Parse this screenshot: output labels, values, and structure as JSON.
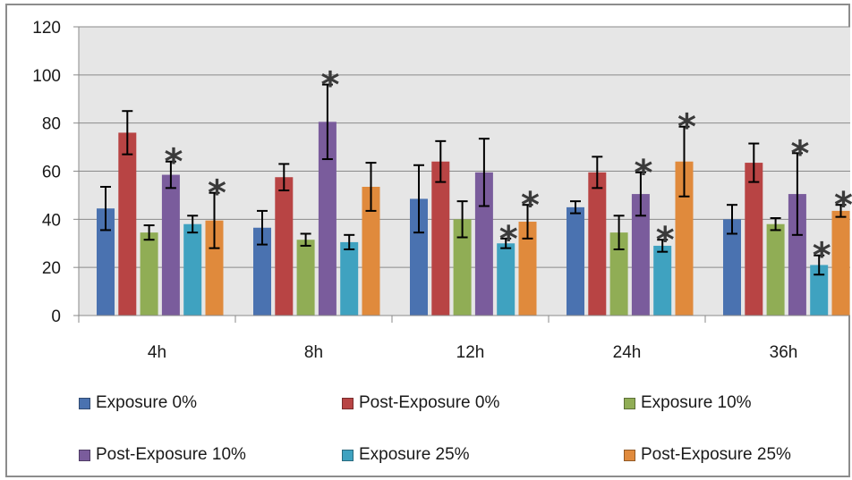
{
  "chart_data": {
    "type": "bar",
    "title": "",
    "xlabel": "",
    "ylabel": "",
    "ylim": [
      0,
      120
    ],
    "yticks": [
      0,
      20,
      40,
      60,
      80,
      100,
      120
    ],
    "categories": [
      "4h",
      "8h",
      "12h",
      "24h",
      "36h"
    ],
    "grid": true,
    "legend_position": "bottom",
    "plot_background": "#e6e6e6",
    "significance_marker": "*",
    "series": [
      {
        "name": "Exposure 0%",
        "color": "#4a72b0",
        "values": [
          44.5,
          36.5,
          48.5,
          45,
          40
        ],
        "errors": [
          9,
          7,
          14,
          2.5,
          6
        ],
        "significant": [
          false,
          false,
          false,
          false,
          false
        ]
      },
      {
        "name": "Post-Exposure 0%",
        "color": "#b84444",
        "values": [
          76,
          57.5,
          64,
          59.5,
          63.5
        ],
        "errors": [
          9,
          5.5,
          8.5,
          6.5,
          8
        ],
        "significant": [
          false,
          false,
          false,
          false,
          false
        ]
      },
      {
        "name": "Exposure 10%",
        "color": "#90ad55",
        "values": [
          34.5,
          31.5,
          40,
          34.5,
          38
        ],
        "errors": [
          3,
          2.5,
          7.5,
          7,
          2.5
        ],
        "significant": [
          false,
          false,
          false,
          false,
          false
        ]
      },
      {
        "name": "Post-Exposure 10%",
        "color": "#7a5c9c",
        "values": [
          58.5,
          80.5,
          59.5,
          50.5,
          50.5
        ],
        "errors": [
          5.5,
          15.5,
          14,
          9,
          17
        ],
        "significant": [
          true,
          true,
          false,
          true,
          true
        ]
      },
      {
        "name": "Exposure 25%",
        "color": "#3fa2c0",
        "values": [
          38,
          30.5,
          30,
          29,
          21
        ],
        "errors": [
          3.5,
          3,
          2,
          2.5,
          4
        ],
        "significant": [
          false,
          false,
          true,
          true,
          true
        ]
      },
      {
        "name": "Post-Exposure 25%",
        "color": "#e08a3c",
        "values": [
          39.5,
          53.5,
          39,
          64,
          43.5
        ],
        "errors": [
          11.5,
          10,
          7,
          14.5,
          2.5
        ],
        "significant": [
          true,
          false,
          true,
          true,
          true
        ]
      }
    ]
  }
}
